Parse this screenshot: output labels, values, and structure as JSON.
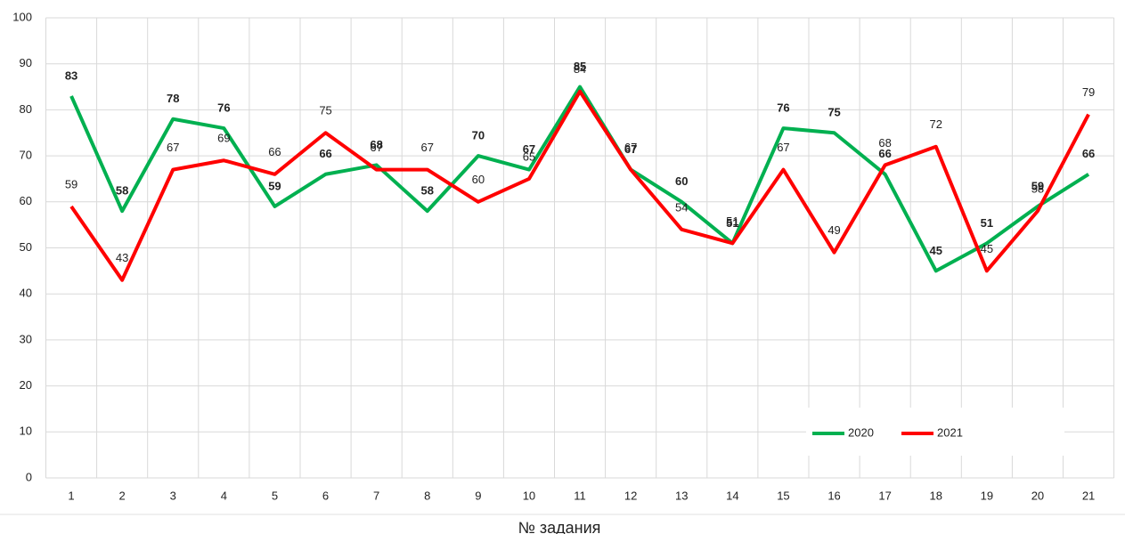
{
  "chart_data": {
    "type": "line",
    "x_label": "№ задания",
    "categories": [
      "1",
      "2",
      "3",
      "4",
      "5",
      "6",
      "7",
      "8",
      "9",
      "10",
      "11",
      "12",
      "13",
      "14",
      "15",
      "16",
      "17",
      "18",
      "19",
      "20",
      "21"
    ],
    "series": [
      {
        "name": "2020",
        "color": "#00b050",
        "values": [
          83,
          58,
          78,
          76,
          59,
          66,
          68,
          58,
          70,
          67,
          85,
          67,
          60,
          51,
          76,
          75,
          66,
          45,
          51,
          59,
          66
        ]
      },
      {
        "name": "2021",
        "color": "#ff0000",
        "values": [
          59,
          43,
          67,
          69,
          66,
          75,
          67,
          67,
          60,
          65,
          84,
          67,
          54,
          51,
          67,
          49,
          68,
          72,
          45,
          58,
          79
        ]
      }
    ],
    "ylim": [
      0,
      100
    ],
    "yticks": [
      0,
      10,
      20,
      30,
      40,
      50,
      60,
      70,
      80,
      90,
      100
    ],
    "grid": true,
    "legend": "lower right"
  }
}
